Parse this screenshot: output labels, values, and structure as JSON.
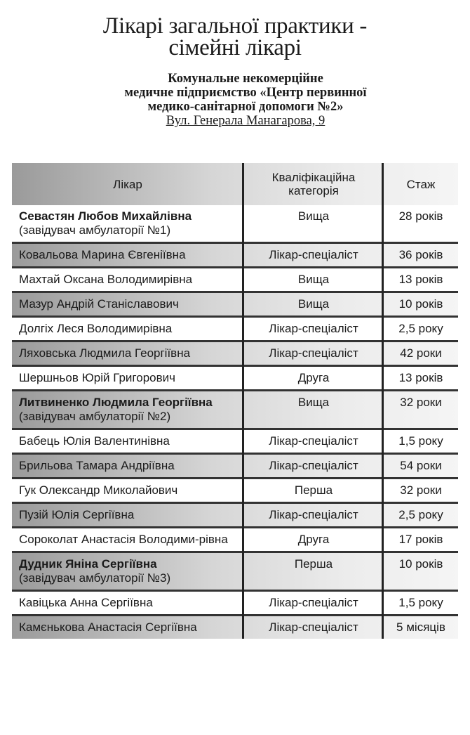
{
  "title_lines": [
    "Лікарі загальної практики -",
    "сімейні лікарі"
  ],
  "organization_lines": [
    "Комунальне некомерційне",
    "медичне підприємство «Центр первинної",
    "медико-санітарної допомоги №2»"
  ],
  "address": "Вул. Генерала Манагарова, 9",
  "table": {
    "headers": [
      "Лікар",
      "Кваліфікаційна категорія",
      "Стаж"
    ],
    "rows": [
      {
        "name": "Севастян Любов Михайлівна",
        "note": "(завідувач амбулаторії №1)",
        "category": "Вища",
        "experience": "28 років"
      },
      {
        "name": "Ковальова Марина Євгеніївна",
        "note": "",
        "category": "Лікар-спеціаліст",
        "experience": "36 років"
      },
      {
        "name": "Махтай Оксана Володимирівна",
        "note": "",
        "category": "Вища",
        "experience": "13 років"
      },
      {
        "name": "Мазур Андрій Станіславович",
        "note": "",
        "category": "Вища",
        "experience": "10 років"
      },
      {
        "name": "Долгіх Леся Володимирівна",
        "note": "",
        "category": "Лікар-спеціаліст",
        "experience": "2,5 року"
      },
      {
        "name": "Ляховська Людмила Георгіївна",
        "note": "",
        "category": "Лікар-спеціаліст",
        "experience": "42 роки"
      },
      {
        "name": "Шершньов Юрій Григорович",
        "note": "",
        "category": "Друга",
        "experience": "13 років"
      },
      {
        "name": "Литвиненко Людмила Георгіївна",
        "note": "(завідувач амбулаторії №2)",
        "category": "Вища",
        "experience": "32 роки"
      },
      {
        "name": "Бабець Юлія Валентинівна",
        "note": "",
        "category": "Лікар-спеціаліст",
        "experience": "1,5 року"
      },
      {
        "name": "Брильова Тамара Андріївна",
        "note": "",
        "category": "Лікар-спеціаліст",
        "experience": "54 роки"
      },
      {
        "name": "Гук Олександр Миколайович",
        "note": "",
        "category": "Перша",
        "experience": "32 роки"
      },
      {
        "name": "Пузій Юлія Сергіївна",
        "note": "",
        "category": "Лікар-спеціаліст",
        "experience": "2,5 року"
      },
      {
        "name": "Сороколат Анастасія Володими-рівна",
        "note": "",
        "category": "Друга",
        "experience": "17 років"
      },
      {
        "name": "Дудник Яніна Сергіївна",
        "note": "(завідувач амбулаторії №3)",
        "category": "Перша",
        "experience": "10 років"
      },
      {
        "name": "Кавіцька Анна Сергіївна",
        "note": "",
        "category": "Лікар-спеціаліст",
        "experience": "1,5 року"
      },
      {
        "name": "Камєнькова Анастасія Сергіївна",
        "note": "",
        "category": "Лікар-спеціаліст",
        "experience": "5 місяців"
      }
    ]
  }
}
